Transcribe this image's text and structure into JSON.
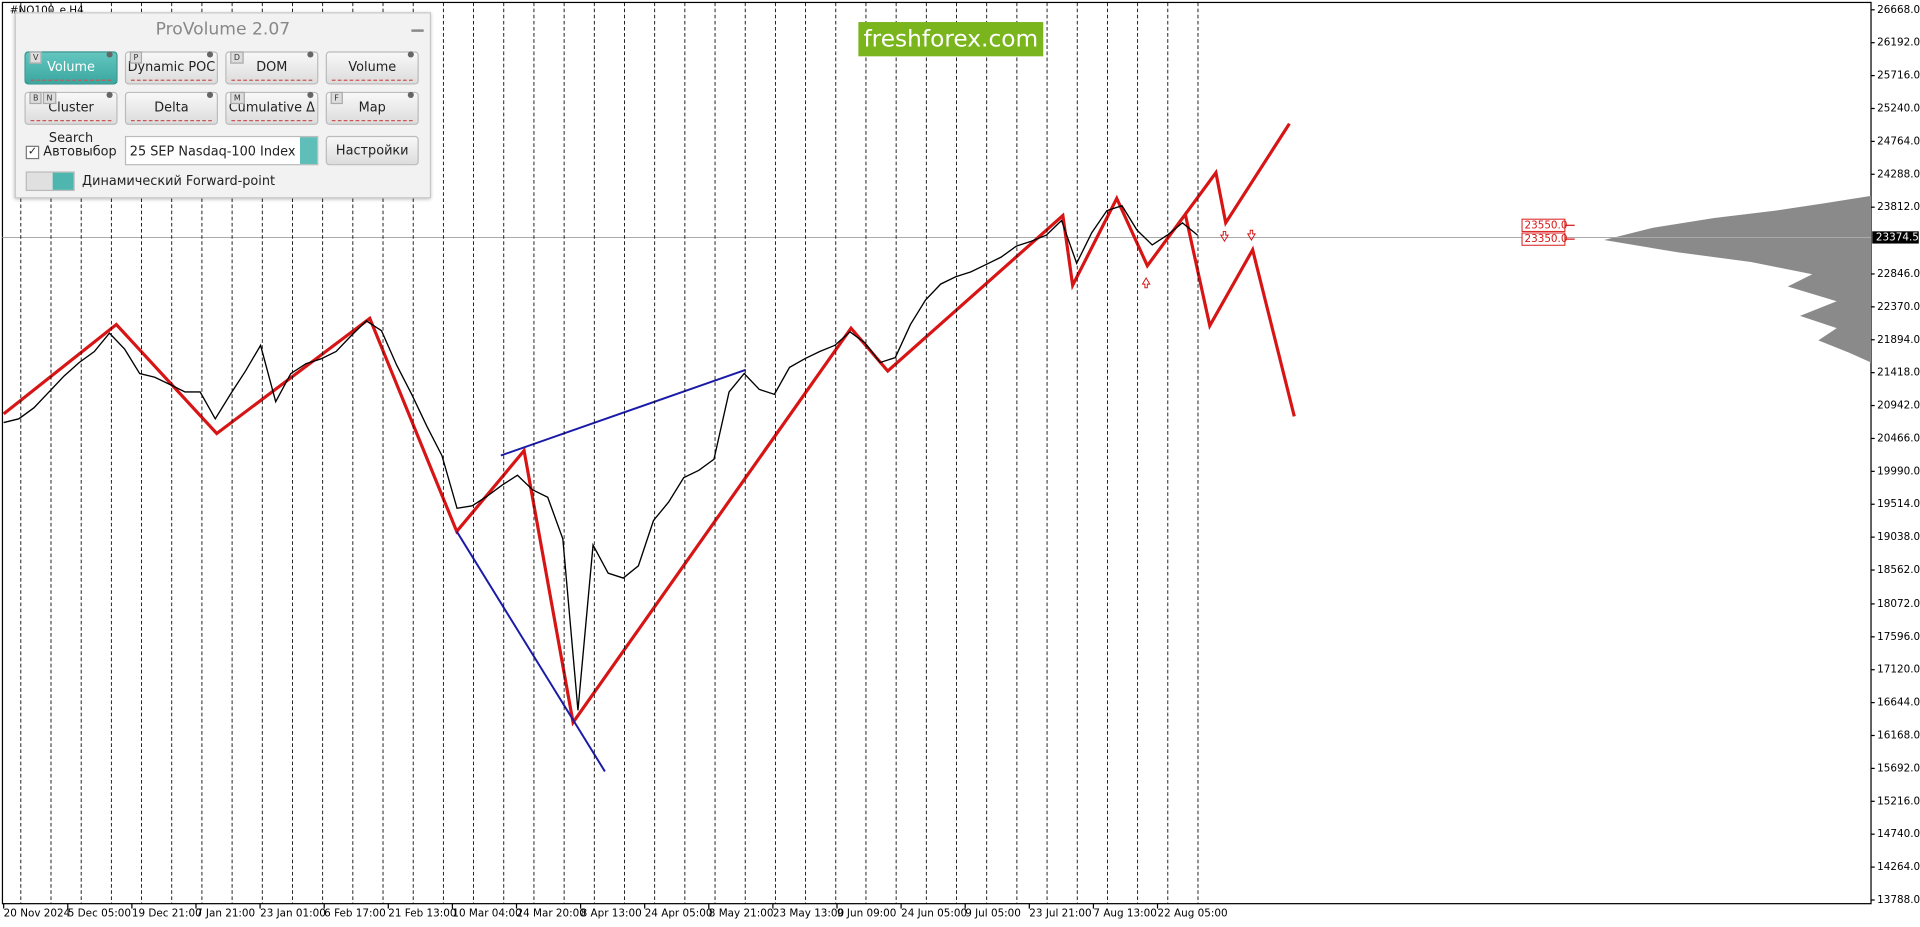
{
  "window": {
    "title": "#NQ100_e,H4"
  },
  "logo": "freshforex.com",
  "panel": {
    "title": "ProVolume 2.07",
    "buttons": [
      {
        "label": "Volume Profile",
        "keys": [
          "V"
        ]
      },
      {
        "label": "Dynamic POC",
        "keys": [
          "P"
        ]
      },
      {
        "label": "DOM",
        "keys": [
          "D"
        ]
      },
      {
        "label": "Volume",
        "keys": []
      },
      {
        "label": "Cluster Search",
        "keys": [
          "B",
          "N"
        ]
      },
      {
        "label": "Delta",
        "keys": []
      },
      {
        "label": "Cumulative Δ",
        "keys": [
          "M"
        ]
      },
      {
        "label": "Map",
        "keys": [
          "F"
        ]
      }
    ],
    "auto_select": "Автовыбор",
    "instrument": "25 SEP Nasdaq-100 Index",
    "settings": "Настройки",
    "forward_point": "Динамический Forward-point"
  },
  "chart": {
    "type": "line",
    "color": "#000000",
    "x_labels": [
      "20 Nov 2024",
      "5 Dec 05:00",
      "19 Dec 21:00",
      "7 Jan 21:00",
      "23 Jan 01:00",
      "6 Feb 17:00",
      "21 Feb 13:00",
      "10 Mar 04:00",
      "24 Mar 20:00",
      "8 Apr 13:00",
      "24 Apr 05:00",
      "8 May 21:00",
      "23 May 13:00",
      "9 Jun 09:00",
      "24 Jun 05:00",
      "9 Jul 05:00",
      "23 Jul 21:00",
      "7 Aug 13:00",
      "22 Aug 05:00"
    ],
    "ylim": [
      13788,
      26668
    ],
    "yticks": [
      {
        "value": 26668,
        "label": "26668.0"
      },
      {
        "value": 26192,
        "label": "26192.0"
      },
      {
        "value": 25716,
        "label": "25716.0"
      },
      {
        "value": 25240,
        "label": "25240.0"
      },
      {
        "value": 24764,
        "label": "24764.0"
      },
      {
        "value": 24288,
        "label": "24288.0"
      },
      {
        "value": 23812,
        "label": "23812.0"
      },
      {
        "value": 22846,
        "label": "22846.0"
      },
      {
        "value": 22370,
        "label": "22370.0"
      },
      {
        "value": 21894,
        "label": "21894.0"
      },
      {
        "value": 21418,
        "label": "21418.0"
      },
      {
        "value": 20942,
        "label": "20942.0"
      },
      {
        "value": 20466,
        "label": "20466.0"
      },
      {
        "value": 19990,
        "label": "19990.0"
      },
      {
        "value": 19514,
        "label": "19514.0"
      },
      {
        "value": 19038,
        "label": "19038.0"
      },
      {
        "value": 18562,
        "label": "18562.0"
      },
      {
        "value": 18072,
        "label": "18072.0"
      },
      {
        "value": 17596,
        "label": "17596.0"
      },
      {
        "value": 17120,
        "label": "17120.0"
      },
      {
        "value": 16644,
        "label": "16644.0"
      },
      {
        "value": 16168,
        "label": "16168.0"
      },
      {
        "value": 15692,
        "label": "15692.0"
      },
      {
        "value": 15216,
        "label": "15216.0"
      },
      {
        "value": 14740,
        "label": "14740.0"
      },
      {
        "value": 14264,
        "label": "14264.0"
      },
      {
        "value": 13788,
        "label": "13788.0"
      }
    ],
    "prices": [
      20696,
      20750,
      20909,
      21139,
      21370,
      21565,
      21724,
      21990,
      21760,
      21405,
      21352,
      21246,
      21139,
      21139,
      20750,
      21104,
      21441,
      21813,
      20998,
      21405,
      21547,
      21618,
      21724,
      21954,
      22167,
      22025,
      21529,
      21104,
      20643,
      20218,
      19456,
      19491,
      19633,
      19793,
      19934,
      19722,
      19615,
      19013,
      16532,
      18924,
      18517,
      18446,
      18623,
      19279,
      19545,
      19899,
      20005,
      20165,
      21139,
      21405,
      21175,
      21104,
      21494,
      21618,
      21724,
      21813,
      22008,
      21848,
      21565,
      21636,
      22114,
      22468,
      22699,
      22805,
      22876,
      22982,
      23089,
      23248,
      23319,
      23408,
      23620,
      23000,
      23443,
      23762,
      23833,
      23478,
      23266,
      23408,
      23585,
      23408
    ],
    "current_price": 23374.5,
    "levels": [
      {
        "value": 23550,
        "label": "23550.0"
      },
      {
        "value": 23350,
        "label": "23350.0"
      }
    ]
  }
}
